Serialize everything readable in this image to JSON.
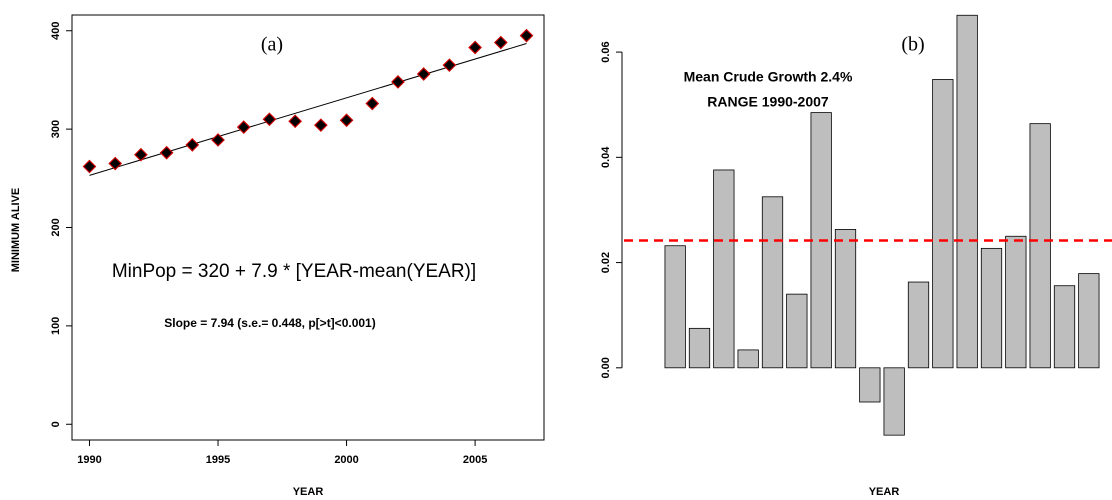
{
  "chart_data": [
    {
      "type": "scatter",
      "label": "(a)",
      "annotations": [
        "MinPop = 320 + 7.9 * [YEAR-mean(YEAR)]",
        "Slope = 7.94 (s.e.= 0.448, p[>t]<0.001)"
      ],
      "xlabel": "YEAR",
      "ylabel": "MINIMUM ALIVE",
      "x": [
        1990,
        1991,
        1992,
        1993,
        1994,
        1995,
        1996,
        1997,
        1998,
        1999,
        2000,
        2001,
        2002,
        2003,
        2004,
        2005,
        2006,
        2007
      ],
      "values": [
        262,
        265,
        274,
        276,
        284,
        289,
        302,
        310,
        308,
        304,
        309,
        326,
        348,
        356,
        365,
        383,
        388,
        395
      ],
      "color": "#000000",
      "edge_color": "#cc0000",
      "fit": {
        "x": [
          1990,
          2007
        ],
        "values": [
          253,
          387
        ]
      },
      "xlim": [
        1989.32,
        2007.68
      ],
      "ylim": [
        -16,
        416
      ],
      "xticks": [
        1990,
        1995,
        2000,
        2005
      ],
      "yticks": [
        0,
        100,
        200,
        300,
        400
      ]
    },
    {
      "type": "bar",
      "label": "(b)",
      "annotations": [
        "Mean Crude Growth 2.4%",
        "RANGE 1990-2007"
      ],
      "xlabel": "YEAR",
      "categories": [
        null,
        null,
        null,
        null,
        null,
        null,
        null,
        null,
        null,
        null,
        null,
        null,
        null,
        null,
        null,
        null,
        null,
        null
      ],
      "values": [
        0.0232,
        0.0075,
        0.0376,
        0.0034,
        0.0325,
        0.014,
        0.0485,
        0.0263,
        -0.0065,
        -0.0128,
        0.0163,
        0.0548,
        0.067,
        0.0227,
        0.025,
        0.0464,
        0.0156,
        0.0179
      ],
      "color": "#bebebe",
      "mean_line": {
        "value": 0.0242,
        "color": "#ff0000"
      },
      "ylim": [
        -0.016,
        0.068
      ],
      "yticks": [
        {
          "value": 0,
          "label": "0.00"
        },
        {
          "value": 0.02,
          "label": "0.02"
        },
        {
          "value": 0.04,
          "label": "0.04"
        },
        {
          "value": 0.06,
          "label": "0.06"
        }
      ]
    }
  ]
}
